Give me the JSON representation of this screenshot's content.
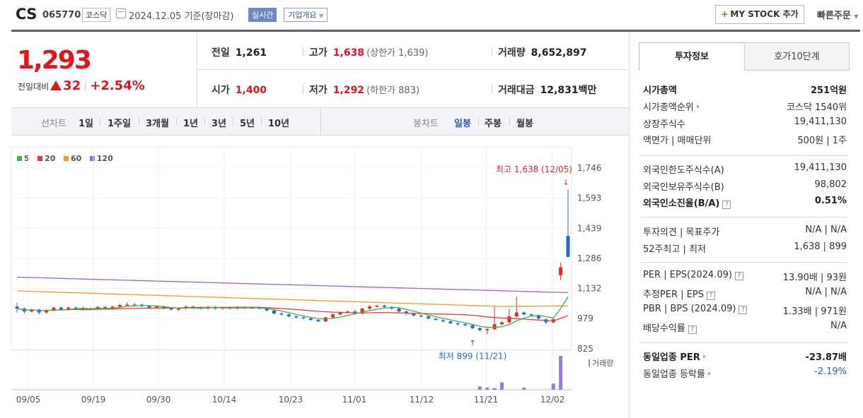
{
  "header": {
    "name": "CS",
    "code": "065770",
    "market": "코스닥",
    "date": "2024.12.05  기준(장마감)",
    "realtime": "실시간",
    "corp_info": "기업개요",
    "mystock": "MY STOCK 추가",
    "quick_order": "빠른주문"
  },
  "price": {
    "current": "1,293",
    "change_label": "전일대비",
    "change_amount": "32",
    "change_pct": "+2.54%"
  },
  "stats": {
    "prev_label": "전일",
    "prev": "1,261",
    "high_label": "고가",
    "high": "1,638",
    "upper_limit": "(상한가 1,639)",
    "volume_label": "거래량",
    "volume": "8,652,897",
    "open_label": "시가",
    "open": "1,400",
    "low_label": "저가",
    "low": "1,292",
    "lower_limit": "(하한가 883)",
    "amount_label": "거래대금",
    "amount": "12,831",
    "amount_unit": "백만"
  },
  "period": {
    "line_label": "선차트",
    "line_items": [
      "1일",
      "1주일",
      "3개월",
      "1년",
      "3년",
      "5년",
      "10년"
    ],
    "candle_label": "봉차트",
    "candle_items": [
      "일봉",
      "주봉",
      "월봉"
    ],
    "active_candle": "일봉"
  },
  "chart_data": {
    "type": "candlestick",
    "legend": [
      {
        "name": "5",
        "color": "#3cb449"
      },
      {
        "name": "20",
        "color": "#e83b3b"
      },
      {
        "name": "60",
        "color": "#f39a32"
      },
      {
        "name": "120",
        "color": "#9a63d6"
      }
    ],
    "y_ticks": [
      1746,
      1593,
      1439,
      1286,
      1132,
      979,
      825
    ],
    "ylim": [
      825,
      1746
    ],
    "x_ticks": [
      "09/05",
      "09/19",
      "09/30",
      "10/14",
      "10/23",
      "11/01",
      "11/12",
      "11/21",
      "12/02"
    ],
    "high_annotation": "최고 1,638 (12/05)",
    "low_annotation": "최저 899 (11/21)",
    "volume_label": "거래량",
    "candles": [
      {
        "o": 1040,
        "c": 1030,
        "h": 1060,
        "l": 1010
      },
      {
        "o": 1030,
        "c": 1015,
        "h": 1035,
        "l": 1005
      },
      {
        "o": 1015,
        "c": 1025,
        "h": 1030,
        "l": 1010
      },
      {
        "o": 1025,
        "c": 1010,
        "h": 1030,
        "l": 1000
      },
      {
        "o": 1010,
        "c": 1020,
        "h": 1028,
        "l": 1005
      },
      {
        "o": 1020,
        "c": 1035,
        "h": 1040,
        "l": 1015
      },
      {
        "o": 1035,
        "c": 1025,
        "h": 1040,
        "l": 1020
      },
      {
        "o": 1025,
        "c": 1035,
        "h": 1040,
        "l": 1020
      },
      {
        "o": 1035,
        "c": 1030,
        "h": 1040,
        "l": 1025
      },
      {
        "o": 1030,
        "c": 1030,
        "h": 1040,
        "l": 1020
      },
      {
        "o": 1030,
        "c": 1025,
        "h": 1035,
        "l": 1020
      },
      {
        "o": 1025,
        "c": 1038,
        "h": 1042,
        "l": 1022
      },
      {
        "o": 1038,
        "c": 1030,
        "h": 1042,
        "l": 1025
      },
      {
        "o": 1030,
        "c": 1040,
        "h": 1045,
        "l": 1025
      },
      {
        "o": 1040,
        "c": 1048,
        "h": 1055,
        "l": 1035
      },
      {
        "o": 1048,
        "c": 1050,
        "h": 1062,
        "l": 1040
      },
      {
        "o": 1050,
        "c": 1050,
        "h": 1060,
        "l": 1045
      },
      {
        "o": 1050,
        "c": 1042,
        "h": 1055,
        "l": 1038
      },
      {
        "o": 1042,
        "c": 1035,
        "h": 1048,
        "l": 1030
      },
      {
        "o": 1035,
        "c": 1040,
        "h": 1045,
        "l": 1030
      },
      {
        "o": 1040,
        "c": 1032,
        "h": 1045,
        "l": 1025
      },
      {
        "o": 1032,
        "c": 1025,
        "h": 1036,
        "l": 1020
      },
      {
        "o": 1025,
        "c": 1030,
        "h": 1035,
        "l": 1018
      },
      {
        "o": 1030,
        "c": 1040,
        "h": 1045,
        "l": 1025
      },
      {
        "o": 1040,
        "c": 1035,
        "h": 1045,
        "l": 1028
      },
      {
        "o": 1035,
        "c": 1030,
        "h": 1040,
        "l": 1025
      },
      {
        "o": 1030,
        "c": 1038,
        "h": 1044,
        "l": 1025
      },
      {
        "o": 1038,
        "c": 1030,
        "h": 1042,
        "l": 1025
      },
      {
        "o": 1030,
        "c": 1035,
        "h": 1040,
        "l": 1025
      },
      {
        "o": 1035,
        "c": 1030,
        "h": 1040,
        "l": 1025
      },
      {
        "o": 1030,
        "c": 1038,
        "h": 1042,
        "l": 1025
      },
      {
        "o": 1038,
        "c": 1032,
        "h": 1042,
        "l": 1028
      },
      {
        "o": 1032,
        "c": 1035,
        "h": 1040,
        "l": 1028
      },
      {
        "o": 1035,
        "c": 1030,
        "h": 1040,
        "l": 1025
      },
      {
        "o": 1030,
        "c": 1020,
        "h": 1035,
        "l": 1015
      },
      {
        "o": 1020,
        "c": 1005,
        "h": 1028,
        "l": 1000
      },
      {
        "o": 1005,
        "c": 1000,
        "h": 1012,
        "l": 995
      },
      {
        "o": 1000,
        "c": 990,
        "h": 1005,
        "l": 985
      },
      {
        "o": 990,
        "c": 985,
        "h": 995,
        "l": 980
      },
      {
        "o": 985,
        "c": 980,
        "h": 990,
        "l": 975
      },
      {
        "o": 980,
        "c": 972,
        "h": 985,
        "l": 968
      },
      {
        "o": 972,
        "c": 965,
        "h": 978,
        "l": 960
      },
      {
        "o": 965,
        "c": 985,
        "h": 990,
        "l": 960
      },
      {
        "o": 985,
        "c": 1000,
        "h": 1005,
        "l": 980
      },
      {
        "o": 1000,
        "c": 1010,
        "h": 1015,
        "l": 995
      },
      {
        "o": 1010,
        "c": 1015,
        "h": 1020,
        "l": 1005
      },
      {
        "o": 1015,
        "c": 1005,
        "h": 1025,
        "l": 1000
      },
      {
        "o": 1005,
        "c": 1030,
        "h": 1035,
        "l": 1000
      },
      {
        "o": 1030,
        "c": 1040,
        "h": 1048,
        "l": 1025
      },
      {
        "o": 1040,
        "c": 1045,
        "h": 1050,
        "l": 1035
      },
      {
        "o": 1045,
        "c": 1038,
        "h": 1050,
        "l": 1032
      },
      {
        "o": 1038,
        "c": 1030,
        "h": 1042,
        "l": 1025
      },
      {
        "o": 1030,
        "c": 1015,
        "h": 1035,
        "l": 1010
      },
      {
        "o": 1015,
        "c": 1005,
        "h": 1020,
        "l": 998
      },
      {
        "o": 1005,
        "c": 995,
        "h": 1010,
        "l": 990
      },
      {
        "o": 995,
        "c": 990,
        "h": 1000,
        "l": 985
      },
      {
        "o": 990,
        "c": 980,
        "h": 995,
        "l": 975
      },
      {
        "o": 978,
        "c": 972,
        "h": 980,
        "l": 970
      },
      {
        "o": 970,
        "c": 965,
        "h": 975,
        "l": 960
      },
      {
        "o": 965,
        "c": 955,
        "h": 970,
        "l": 950
      },
      {
        "o": 955,
        "c": 950,
        "h": 960,
        "l": 945
      },
      {
        "o": 950,
        "c": 945,
        "h": 955,
        "l": 940
      },
      {
        "o": 945,
        "c": 930,
        "h": 950,
        "l": 925
      },
      {
        "o": 930,
        "c": 920,
        "h": 935,
        "l": 915
      },
      {
        "o": 920,
        "c": 925,
        "h": 930,
        "l": 899
      },
      {
        "o": 925,
        "c": 950,
        "h": 1040,
        "l": 920
      },
      {
        "o": 950,
        "c": 960,
        "h": 965,
        "l": 945
      },
      {
        "o": 960,
        "c": 990,
        "h": 1030,
        "l": 955
      },
      {
        "o": 990,
        "c": 1010,
        "h": 1090,
        "l": 985
      },
      {
        "o": 1010,
        "c": 1000,
        "h": 1015,
        "l": 995
      },
      {
        "o": 1000,
        "c": 995,
        "h": 1005,
        "l": 990
      },
      {
        "o": 995,
        "c": 980,
        "h": 1000,
        "l": 970
      },
      {
        "o": 975,
        "c": 960,
        "h": 980,
        "l": 950
      },
      {
        "o": 960,
        "c": 975,
        "h": 985,
        "l": 955
      },
      {
        "o": 1200,
        "c": 1240,
        "h": 1265,
        "l": 1175
      },
      {
        "o": 1400,
        "c": 1293,
        "h": 1638,
        "l": 1292
      }
    ],
    "volumes": [
      0,
      0,
      0,
      0,
      0,
      0,
      0,
      0,
      0,
      0,
      0,
      0,
      0,
      0,
      0,
      0,
      0,
      0,
      0,
      0,
      0,
      0,
      0,
      0,
      0,
      0,
      0,
      0,
      0,
      0,
      0,
      0,
      0,
      0,
      0,
      0,
      0,
      0,
      0,
      0,
      0,
      0,
      0,
      0,
      0,
      0,
      0,
      0,
      0,
      0,
      0,
      0,
      0,
      0,
      0,
      0,
      0,
      0,
      0,
      0,
      0,
      0,
      0,
      0.6,
      0.4,
      0.3,
      1.3,
      0,
      0,
      0.4,
      0,
      0,
      0,
      1.1,
      6.0
    ]
  },
  "right": {
    "tab_active": "투자정보",
    "tab_other": "호가10단계",
    "rows": [
      {
        "l": "시가총액",
        "r": "251억원",
        "bold": true
      },
      {
        "l": "시가총액순위",
        "r": "코스닥 1540위",
        "arrow": true
      },
      {
        "l": "상장주식수",
        "r": "19,411,130"
      },
      {
        "l": "액면가 | 매매단위",
        "r": "500원 | 1주"
      },
      {
        "l": "외국인한도주식수(A)",
        "r": "19,411,130"
      },
      {
        "l": "외국인보유주식수(B)",
        "r": "98,802"
      },
      {
        "l": "외국인소진율(B/A)",
        "r": "0.51%",
        "bold": true,
        "q": true
      },
      {
        "l": "투자의견 | 목표주가",
        "r": "N/A | N/A"
      },
      {
        "l": "52주최고 | 최저",
        "r": "1,638 | 899"
      },
      {
        "l": "PER | EPS(2024.09)",
        "r": "13.90배 | 93원",
        "q": true
      },
      {
        "l": "추정PER | EPS",
        "r": "N/A | N/A",
        "q": true
      },
      {
        "l": "PBR | BPS (2024.09)",
        "r": "1.33배 | 971원",
        "q": true
      },
      {
        "l": "배당수익률",
        "r": "N/A",
        "q": true
      },
      {
        "l": "동일업종 PER",
        "r": "-23.87배",
        "bold": true,
        "arrow": true
      },
      {
        "l": "동일업종 등락률",
        "r": "-2.19%",
        "arrow": true,
        "blue": true
      }
    ]
  }
}
